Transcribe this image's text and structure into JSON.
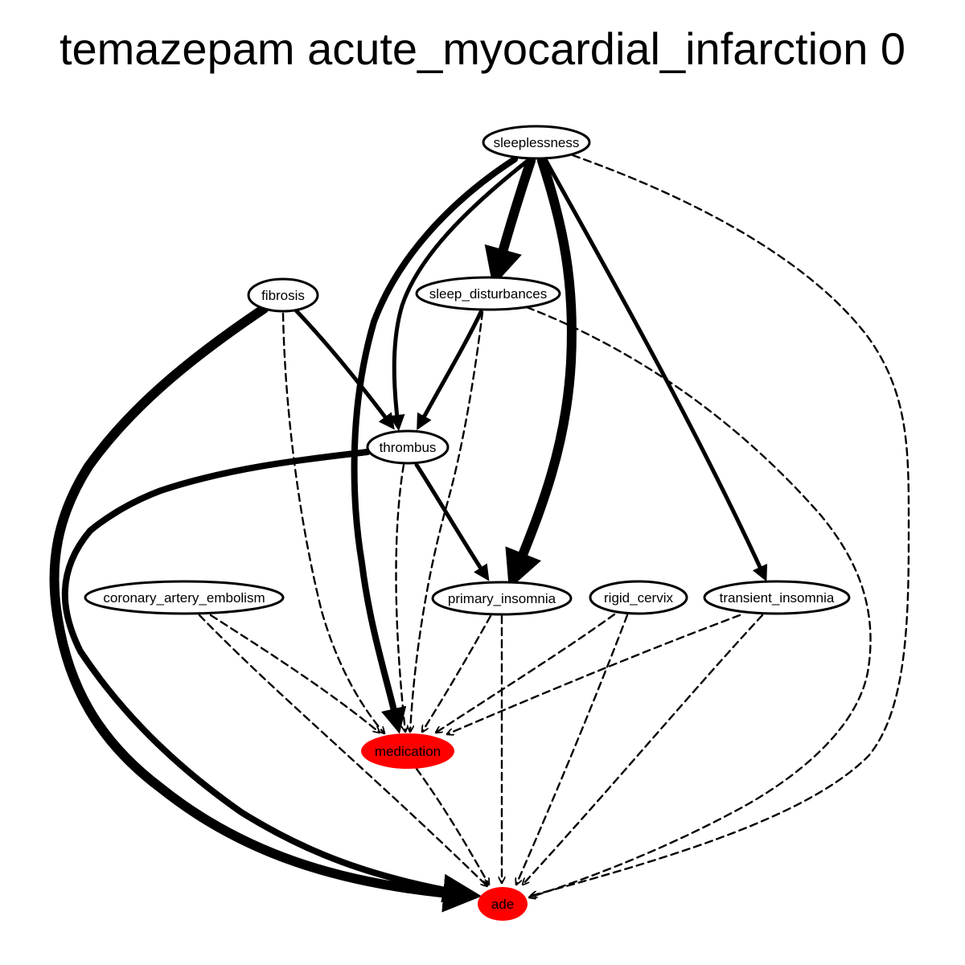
{
  "title": "temazepam acute_myocardial_infarction 0",
  "colors": {
    "background": "#ffffff",
    "node_fill": "#ffffff",
    "highlight_fill": "#ff0000",
    "stroke": "#000000"
  },
  "nodes": [
    {
      "id": "sleeplessness",
      "label": "sleeplessness",
      "highlighted": false
    },
    {
      "id": "fibrosis",
      "label": "fibrosis",
      "highlighted": false
    },
    {
      "id": "sleep_disturbances",
      "label": "sleep_disturbances",
      "highlighted": false
    },
    {
      "id": "thrombus",
      "label": "thrombus",
      "highlighted": false
    },
    {
      "id": "coronary_artery_embolism",
      "label": "coronary_artery_embolism",
      "highlighted": false
    },
    {
      "id": "primary_insomnia",
      "label": "primary_insomnia",
      "highlighted": false
    },
    {
      "id": "rigid_cervix",
      "label": "rigid_cervix",
      "highlighted": false
    },
    {
      "id": "transient_insomnia",
      "label": "transient_insomnia",
      "highlighted": false
    },
    {
      "id": "medication",
      "label": "medication",
      "highlighted": true
    },
    {
      "id": "ade",
      "label": "ade",
      "highlighted": true
    }
  ],
  "edges": [
    {
      "from": "sleeplessness",
      "to": "sleep_disturbances",
      "style": "solid",
      "weight": "very-heavy"
    },
    {
      "from": "sleeplessness",
      "to": "primary_insomnia",
      "style": "solid",
      "weight": "very-heavy"
    },
    {
      "from": "sleeplessness",
      "to": "medication",
      "style": "solid",
      "weight": "heavy"
    },
    {
      "from": "sleeplessness",
      "to": "thrombus",
      "style": "solid",
      "weight": "medium"
    },
    {
      "from": "sleeplessness",
      "to": "transient_insomnia",
      "style": "solid",
      "weight": "medium"
    },
    {
      "from": "sleeplessness",
      "to": "ade",
      "style": "dashed",
      "weight": "thin"
    },
    {
      "from": "fibrosis",
      "to": "ade",
      "style": "solid",
      "weight": "very-heavy"
    },
    {
      "from": "fibrosis",
      "to": "thrombus",
      "style": "solid",
      "weight": "medium"
    },
    {
      "from": "fibrosis",
      "to": "medication",
      "style": "dashed",
      "weight": "thin"
    },
    {
      "from": "sleep_disturbances",
      "to": "thrombus",
      "style": "solid",
      "weight": "medium"
    },
    {
      "from": "sleep_disturbances",
      "to": "medication",
      "style": "dashed",
      "weight": "thin"
    },
    {
      "from": "sleep_disturbances",
      "to": "ade",
      "style": "dashed",
      "weight": "thin"
    },
    {
      "from": "thrombus",
      "to": "ade",
      "style": "solid",
      "weight": "heavy"
    },
    {
      "from": "thrombus",
      "to": "primary_insomnia",
      "style": "solid",
      "weight": "medium"
    },
    {
      "from": "thrombus",
      "to": "medication",
      "style": "dashed",
      "weight": "thin"
    },
    {
      "from": "coronary_artery_embolism",
      "to": "medication",
      "style": "dashed",
      "weight": "thin"
    },
    {
      "from": "coronary_artery_embolism",
      "to": "ade",
      "style": "dashed",
      "weight": "thin"
    },
    {
      "from": "primary_insomnia",
      "to": "medication",
      "style": "dashed",
      "weight": "thin"
    },
    {
      "from": "primary_insomnia",
      "to": "ade",
      "style": "dashed",
      "weight": "thin"
    },
    {
      "from": "rigid_cervix",
      "to": "medication",
      "style": "dashed",
      "weight": "thin"
    },
    {
      "from": "rigid_cervix",
      "to": "ade",
      "style": "dashed",
      "weight": "thin"
    },
    {
      "from": "transient_insomnia",
      "to": "medication",
      "style": "dashed",
      "weight": "thin"
    },
    {
      "from": "transient_insomnia",
      "to": "ade",
      "style": "dashed",
      "weight": "thin"
    },
    {
      "from": "medication",
      "to": "ade",
      "style": "dashed",
      "weight": "thin"
    }
  ]
}
